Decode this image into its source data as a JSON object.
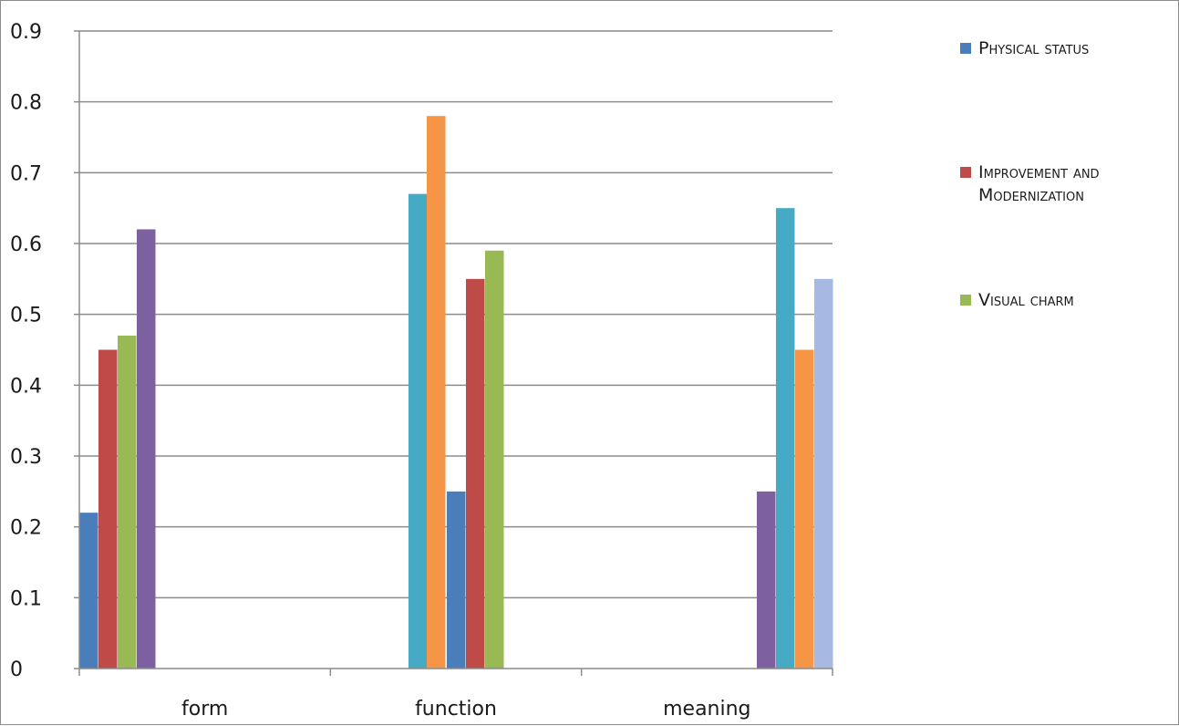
{
  "chart_data": {
    "type": "bar",
    "categories": [
      "form",
      "function",
      "meaning"
    ],
    "ylim": [
      0,
      0.9
    ],
    "yticks": [
      "0",
      "0.1",
      "0.2",
      "0.3",
      "0.4",
      "0.5",
      "0.6",
      "0.7",
      "0.8",
      "0.9"
    ],
    "grid": true,
    "legend_position": "right",
    "legend": [
      {
        "label": "Physical status",
        "color": "#4a7ebb"
      },
      {
        "label": "Improvement and Modernization",
        "color": "#be4b48"
      },
      {
        "label": "Visual charm",
        "color": "#98b954"
      }
    ],
    "bars": {
      "form": [
        {
          "value": 0.22,
          "color": "#4a7ebb"
        },
        {
          "value": 0.45,
          "color": "#be4b48"
        },
        {
          "value": 0.47,
          "color": "#98b954"
        },
        {
          "value": 0.62,
          "color": "#7d60a0"
        }
      ],
      "function": [
        {
          "value": 0.67,
          "color": "#46aac5"
        },
        {
          "value": 0.78,
          "color": "#f69545"
        },
        {
          "value": 0.25,
          "color": "#4a7ebb"
        },
        {
          "value": 0.55,
          "color": "#be4b48"
        },
        {
          "value": 0.59,
          "color": "#98b954"
        }
      ],
      "meaning": [
        {
          "value": 0.25,
          "color": "#7d60a0"
        },
        {
          "value": 0.65,
          "color": "#46aac5"
        },
        {
          "value": 0.45,
          "color": "#f69545"
        },
        {
          "value": 0.55,
          "color": "#a7b9e3"
        }
      ]
    }
  }
}
